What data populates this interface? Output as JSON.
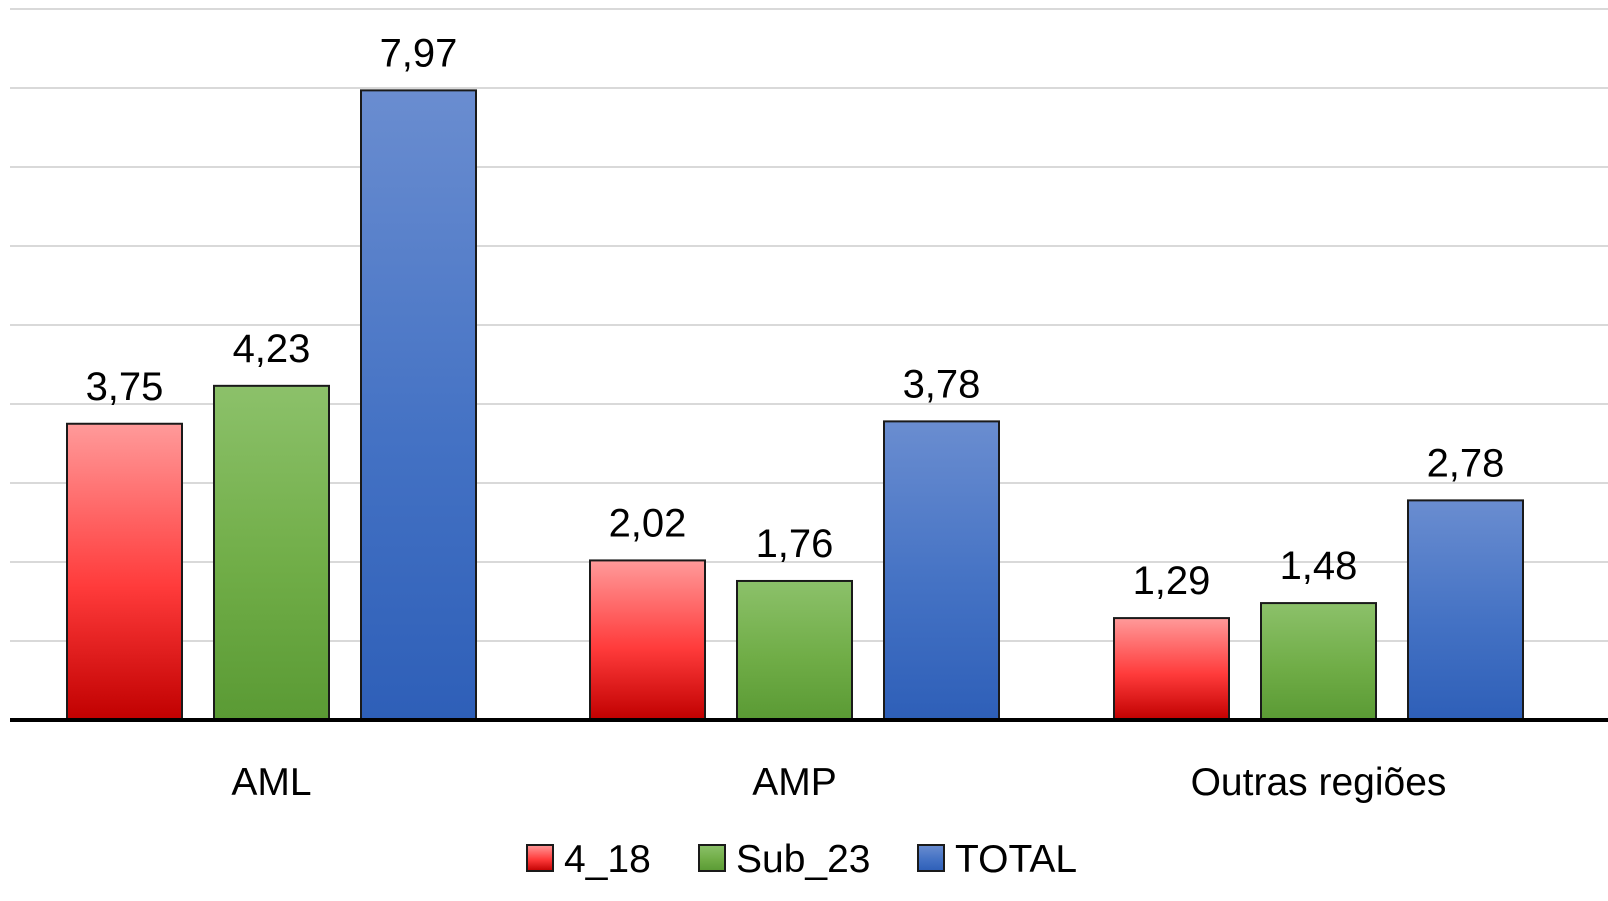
{
  "chart_data": {
    "type": "bar",
    "categories": [
      "AML",
      "AMP",
      "Outras regiões"
    ],
    "series": [
      {
        "name": "4_18",
        "values": [
          3.75,
          2.02,
          1.29
        ],
        "color": "#ff3b3b",
        "color_light": "#ff9a9a",
        "color_dark": "#c00000"
      },
      {
        "name": "Sub_23",
        "values": [
          4.23,
          1.76,
          1.48
        ],
        "color": "#70ad47",
        "color_light": "#8cc16a",
        "color_dark": "#5a9a34"
      },
      {
        "name": "TOTAL",
        "values": [
          7.97,
          3.78,
          2.78
        ],
        "color": "#4472c4",
        "color_light": "#6a8dd0",
        "color_dark": "#2e5fb8"
      }
    ],
    "data_labels": [
      [
        "3,75",
        "2,02",
        "1,29"
      ],
      [
        "4,23",
        "1,76",
        "1,48"
      ],
      [
        "7,97",
        "3,78",
        "2,78"
      ]
    ],
    "title": "",
    "xlabel": "",
    "ylabel": "",
    "ylim": [
      0,
      9
    ],
    "y_gridlines_step": 1,
    "grid": true,
    "y_tick_labels_visible": false,
    "legend_position": "bottom"
  }
}
